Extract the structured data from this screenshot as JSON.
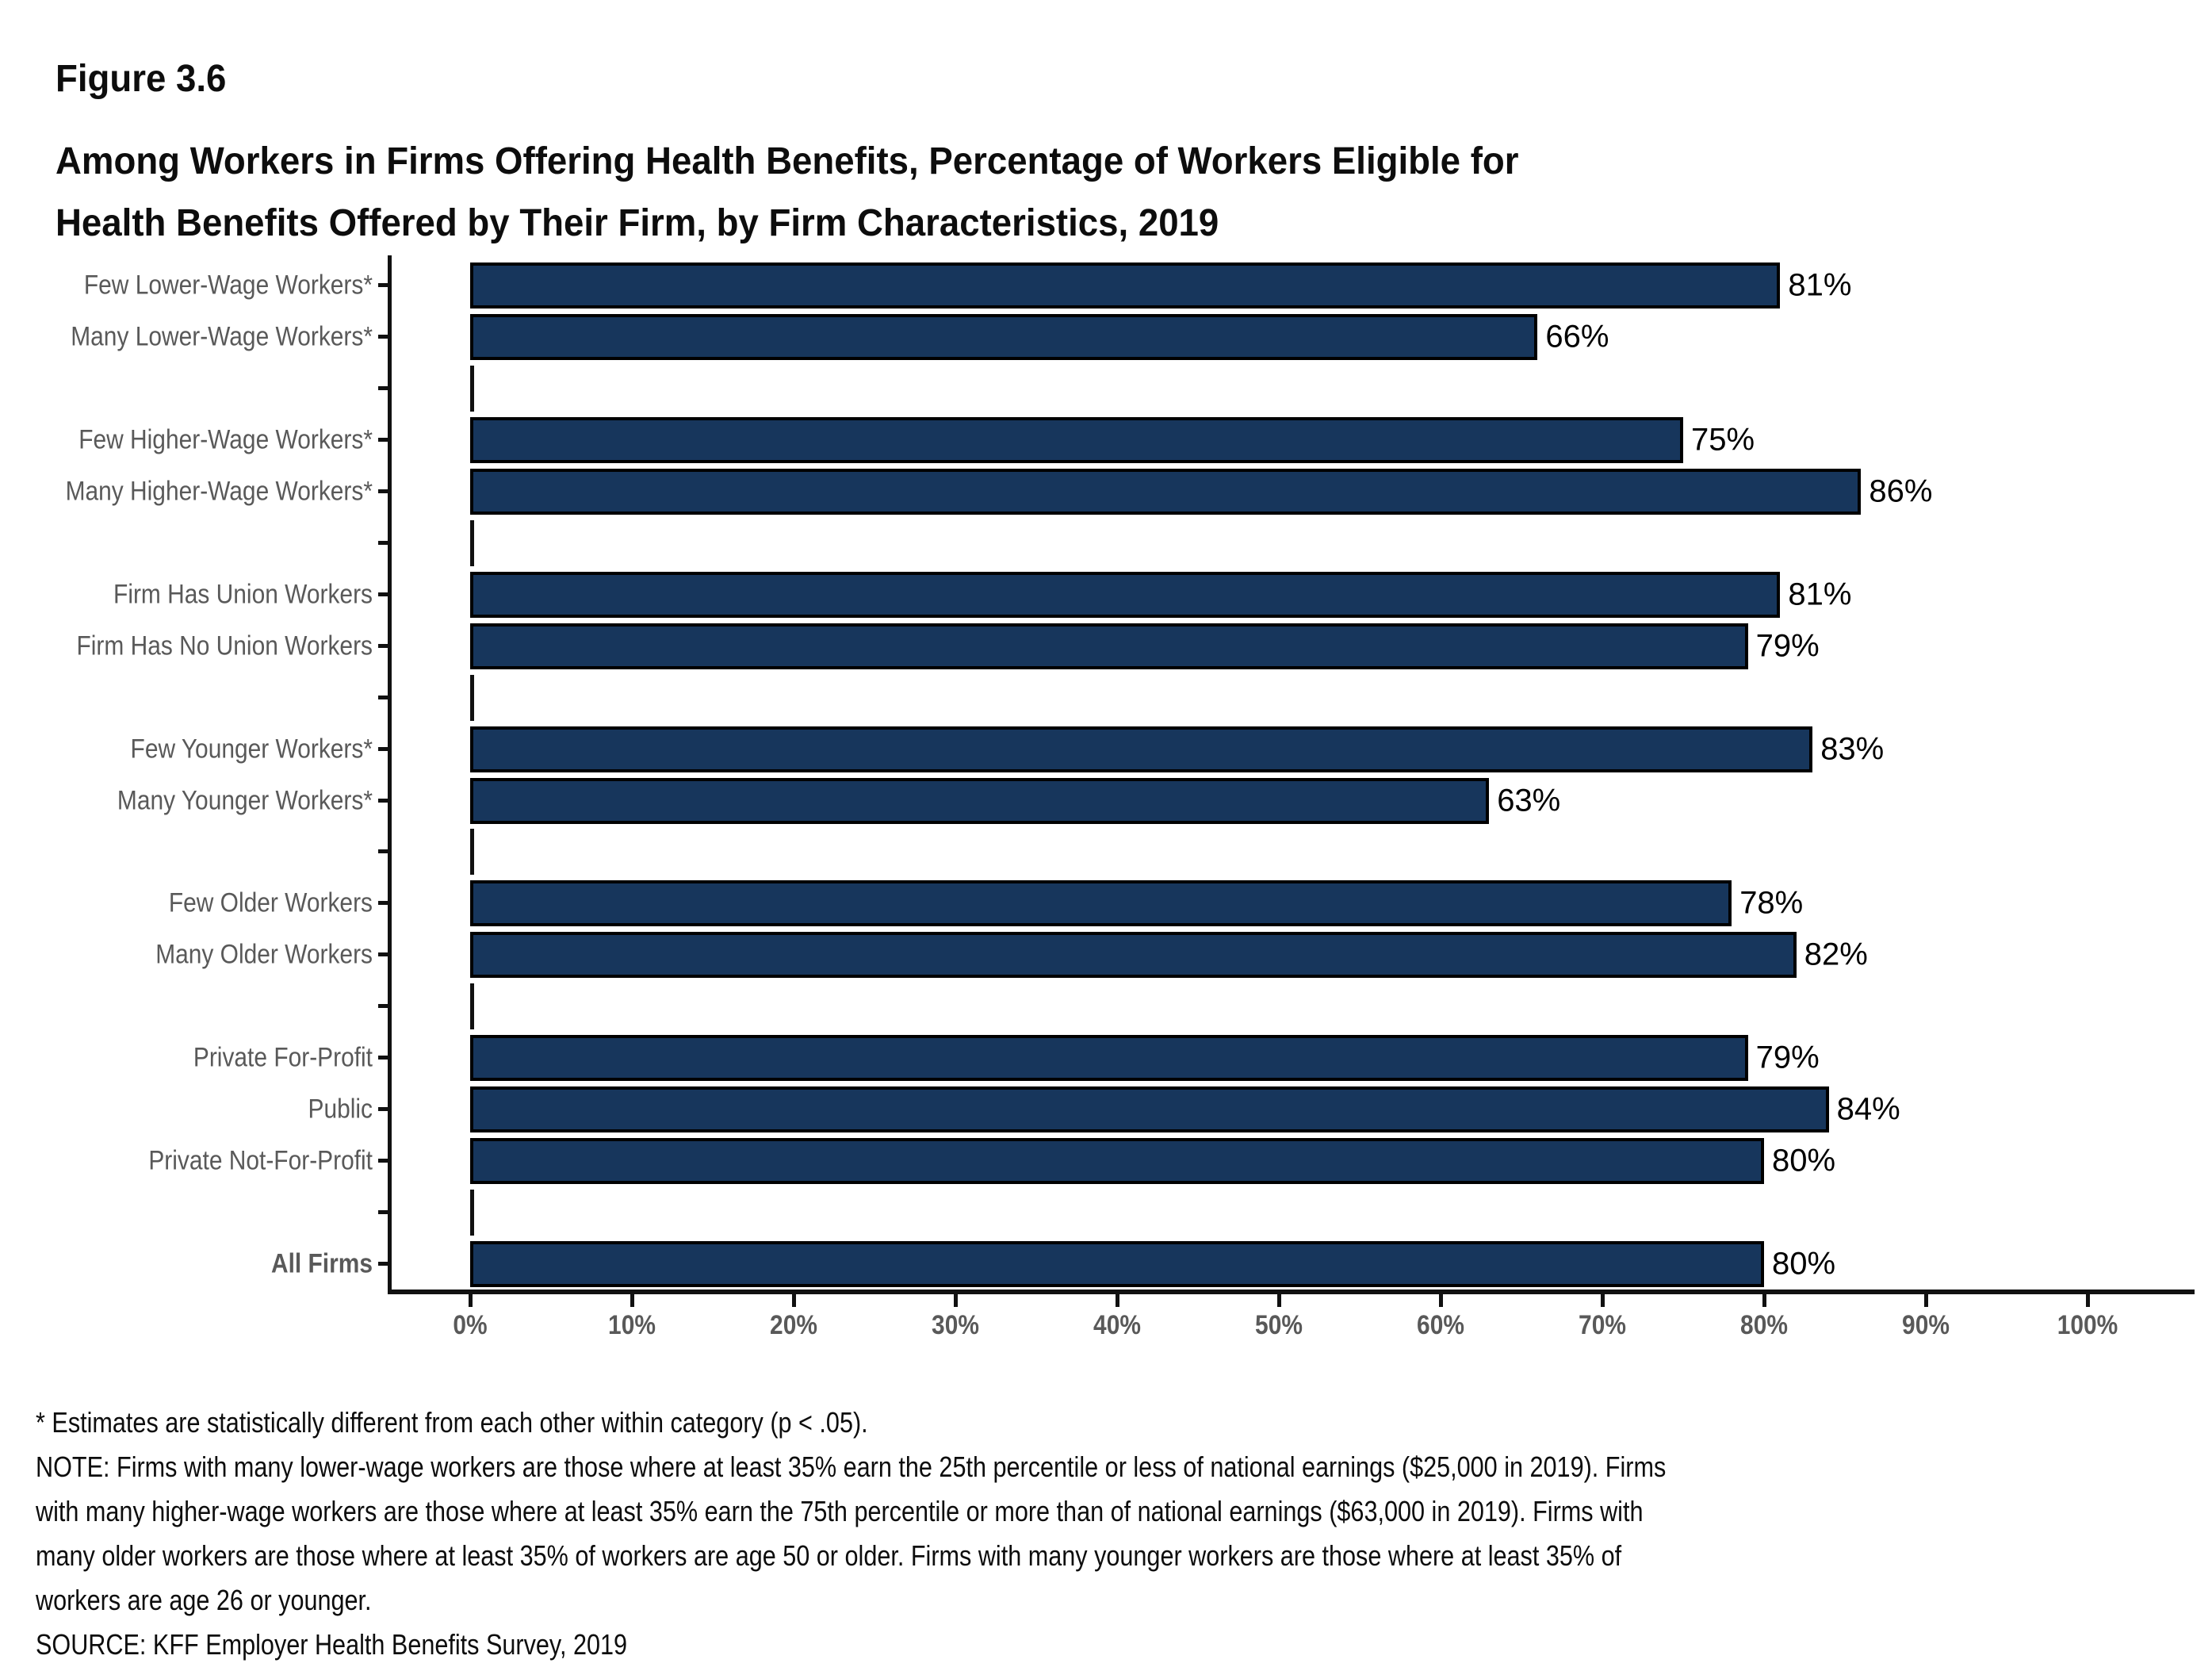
{
  "figure_label": "Figure 3.6",
  "title": {
    "line1": "Among Workers in Firms Offering Health Benefits, Percentage of Workers Eligible for",
    "line2": "Health Benefits Offered by Their Firm, by Firm Characteristics, 2019"
  },
  "colors": {
    "bar_fill": "#17365C",
    "bar_border": "#000000",
    "axis": "#111111",
    "category_label_gray": "#595959",
    "value_label": "#000000"
  },
  "chart_data": {
    "type": "bar",
    "orientation": "horizontal",
    "title": "Among Workers in Firms Offering Health Benefits, Percentage of Workers Eligible for Health Benefits Offered by Their Firm, by Firm Characteristics, 2019",
    "xlabel": "",
    "ylabel": "",
    "xlim": [
      0,
      100
    ],
    "x_tick_labels": [
      "0%",
      "10%",
      "20%",
      "30%",
      "40%",
      "50%",
      "60%",
      "70%",
      "80%",
      "90%",
      "100%"
    ],
    "grid": false,
    "legend": "none",
    "categories": [
      "Few Lower-Wage Workers*",
      "Many Lower-Wage Workers*",
      "Few Higher-Wage Workers*",
      "Many Higher-Wage Workers*",
      "Firm Has Union Workers",
      "Firm Has No Union Workers",
      "Few Younger Workers*",
      "Many Younger Workers*",
      "Few Older Workers",
      "Many Older Workers",
      "Private For-Profit",
      "Public",
      "Private Not-For-Profit",
      "All Firms"
    ],
    "values": [
      81,
      66,
      75,
      86,
      81,
      79,
      83,
      63,
      78,
      82,
      79,
      84,
      80,
      80
    ],
    "value_labels": [
      "81%",
      "66%",
      "75%",
      "86%",
      "81%",
      "79%",
      "83%",
      "63%",
      "78%",
      "82%",
      "79%",
      "84%",
      "80%",
      "80%"
    ]
  },
  "rows": [
    {
      "type": "bar",
      "label": "Few Lower-Wage Workers*",
      "value": 81,
      "display": "81%",
      "bold": false
    },
    {
      "type": "bar",
      "label": "Many Lower-Wage Workers*",
      "value": 66,
      "display": "66%",
      "bold": false
    },
    {
      "type": "gap"
    },
    {
      "type": "bar",
      "label": "Few Higher-Wage Workers*",
      "value": 75,
      "display": "75%",
      "bold": false
    },
    {
      "type": "bar",
      "label": "Many Higher-Wage Workers*",
      "value": 86,
      "display": "86%",
      "bold": false
    },
    {
      "type": "gap"
    },
    {
      "type": "bar",
      "label": "Firm Has Union Workers",
      "value": 81,
      "display": "81%",
      "bold": false
    },
    {
      "type": "bar",
      "label": "Firm Has No Union Workers",
      "value": 79,
      "display": "79%",
      "bold": false
    },
    {
      "type": "gap"
    },
    {
      "type": "bar",
      "label": "Few Younger Workers*",
      "value": 83,
      "display": "83%",
      "bold": false
    },
    {
      "type": "bar",
      "label": "Many Younger Workers*",
      "value": 63,
      "display": "63%",
      "bold": false
    },
    {
      "type": "gap"
    },
    {
      "type": "bar",
      "label": "Few Older Workers",
      "value": 78,
      "display": "78%",
      "bold": false
    },
    {
      "type": "bar",
      "label": "Many Older Workers",
      "value": 82,
      "display": "82%",
      "bold": false
    },
    {
      "type": "gap"
    },
    {
      "type": "bar",
      "label": "Private For-Profit",
      "value": 79,
      "display": "79%",
      "bold": false
    },
    {
      "type": "bar",
      "label": "Public",
      "value": 84,
      "display": "84%",
      "bold": false
    },
    {
      "type": "bar",
      "label": "Private Not-For-Profit",
      "value": 80,
      "display": "80%",
      "bold": false
    },
    {
      "type": "gap"
    },
    {
      "type": "bar",
      "label": "All Firms",
      "value": 80,
      "display": "80%",
      "bold": true
    }
  ],
  "footnotes": [
    "* Estimates are statistically different from each other within category (p < .05).",
    "NOTE: Firms with many lower-wage workers are those where at least 35% earn the 25th percentile or less of national earnings ($25,000 in 2019). Firms",
    "with many higher-wage workers are those where at least 35% earn the 75th percentile or more than of national earnings ($63,000 in 2019). Firms with",
    "many older workers are those where at least 35% of workers are age 50 or older. Firms with many younger workers are those where at least 35% of",
    "workers are age 26 or younger.",
    "SOURCE: KFF Employer Health Benefits Survey, 2019"
  ]
}
